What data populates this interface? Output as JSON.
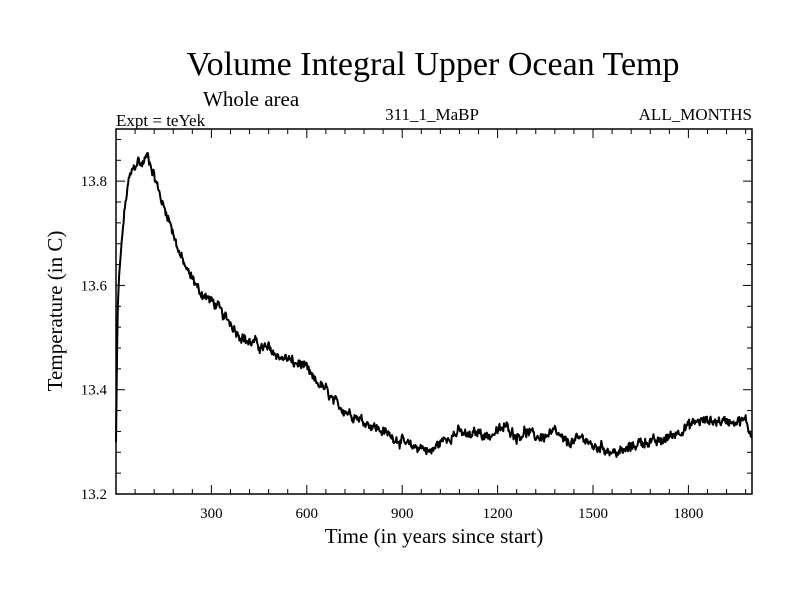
{
  "chart_data": {
    "type": "line",
    "title": "Volume Integral Upper Ocean Temp",
    "subtitle": "Whole area",
    "annotations": {
      "experiment": "Expt = teYek",
      "run_id": "311_1_MaBP",
      "months": "ALL_MONTHS"
    },
    "xlabel": "Time (in years since start)",
    "ylabel": "Temperature (in C)",
    "xlim": [
      0,
      2000
    ],
    "ylim": [
      13.2,
      13.9
    ],
    "x_ticks": [
      300,
      600,
      900,
      1200,
      1500,
      1800
    ],
    "x_tick_labels": [
      "300",
      "600",
      "900",
      "1200",
      "1500",
      "1800"
    ],
    "y_ticks": [
      13.2,
      13.4,
      13.6,
      13.8
    ],
    "y_tick_labels": [
      "13.2",
      "13.4",
      "13.6",
      "13.8"
    ],
    "grid": false,
    "series": [
      {
        "name": "Volume integral upper ocean temperature",
        "x": [
          0,
          5,
          10,
          20,
          30,
          40,
          50,
          60,
          70,
          80,
          90,
          100,
          110,
          120,
          130,
          140,
          150,
          160,
          170,
          180,
          190,
          200,
          215,
          230,
          245,
          260,
          280,
          300,
          320,
          340,
          360,
          380,
          400,
          420,
          440,
          460,
          480,
          500,
          520,
          540,
          560,
          580,
          600,
          620,
          640,
          660,
          680,
          700,
          720,
          750,
          780,
          810,
          840,
          870,
          900,
          930,
          960,
          990,
          1020,
          1050,
          1080,
          1110,
          1140,
          1170,
          1200,
          1230,
          1260,
          1290,
          1320,
          1350,
          1380,
          1410,
          1440,
          1470,
          1500,
          1530,
          1560,
          1590,
          1620,
          1650,
          1680,
          1710,
          1740,
          1770,
          1800,
          1830,
          1860,
          1890,
          1920,
          1950,
          1980,
          2000
        ],
        "y": [
          13.3,
          13.55,
          13.62,
          13.7,
          13.76,
          13.8,
          13.82,
          13.83,
          13.84,
          13.83,
          13.84,
          13.85,
          13.83,
          13.81,
          13.79,
          13.77,
          13.75,
          13.74,
          13.72,
          13.7,
          13.68,
          13.66,
          13.64,
          13.62,
          13.61,
          13.59,
          13.58,
          13.57,
          13.56,
          13.54,
          13.53,
          13.51,
          13.5,
          13.49,
          13.49,
          13.48,
          13.48,
          13.47,
          13.46,
          13.46,
          13.45,
          13.45,
          13.44,
          13.42,
          13.41,
          13.4,
          13.38,
          13.37,
          13.36,
          13.35,
          13.34,
          13.33,
          13.32,
          13.31,
          13.3,
          13.29,
          13.29,
          13.28,
          13.3,
          13.31,
          13.32,
          13.31,
          13.32,
          13.31,
          13.32,
          13.33,
          13.31,
          13.32,
          13.31,
          13.31,
          13.32,
          13.3,
          13.3,
          13.31,
          13.29,
          13.29,
          13.28,
          13.28,
          13.29,
          13.3,
          13.3,
          13.3,
          13.31,
          13.32,
          13.33,
          13.34,
          13.34,
          13.34,
          13.34,
          13.34,
          13.34,
          13.31
        ]
      }
    ],
    "line_color": "#000000"
  }
}
